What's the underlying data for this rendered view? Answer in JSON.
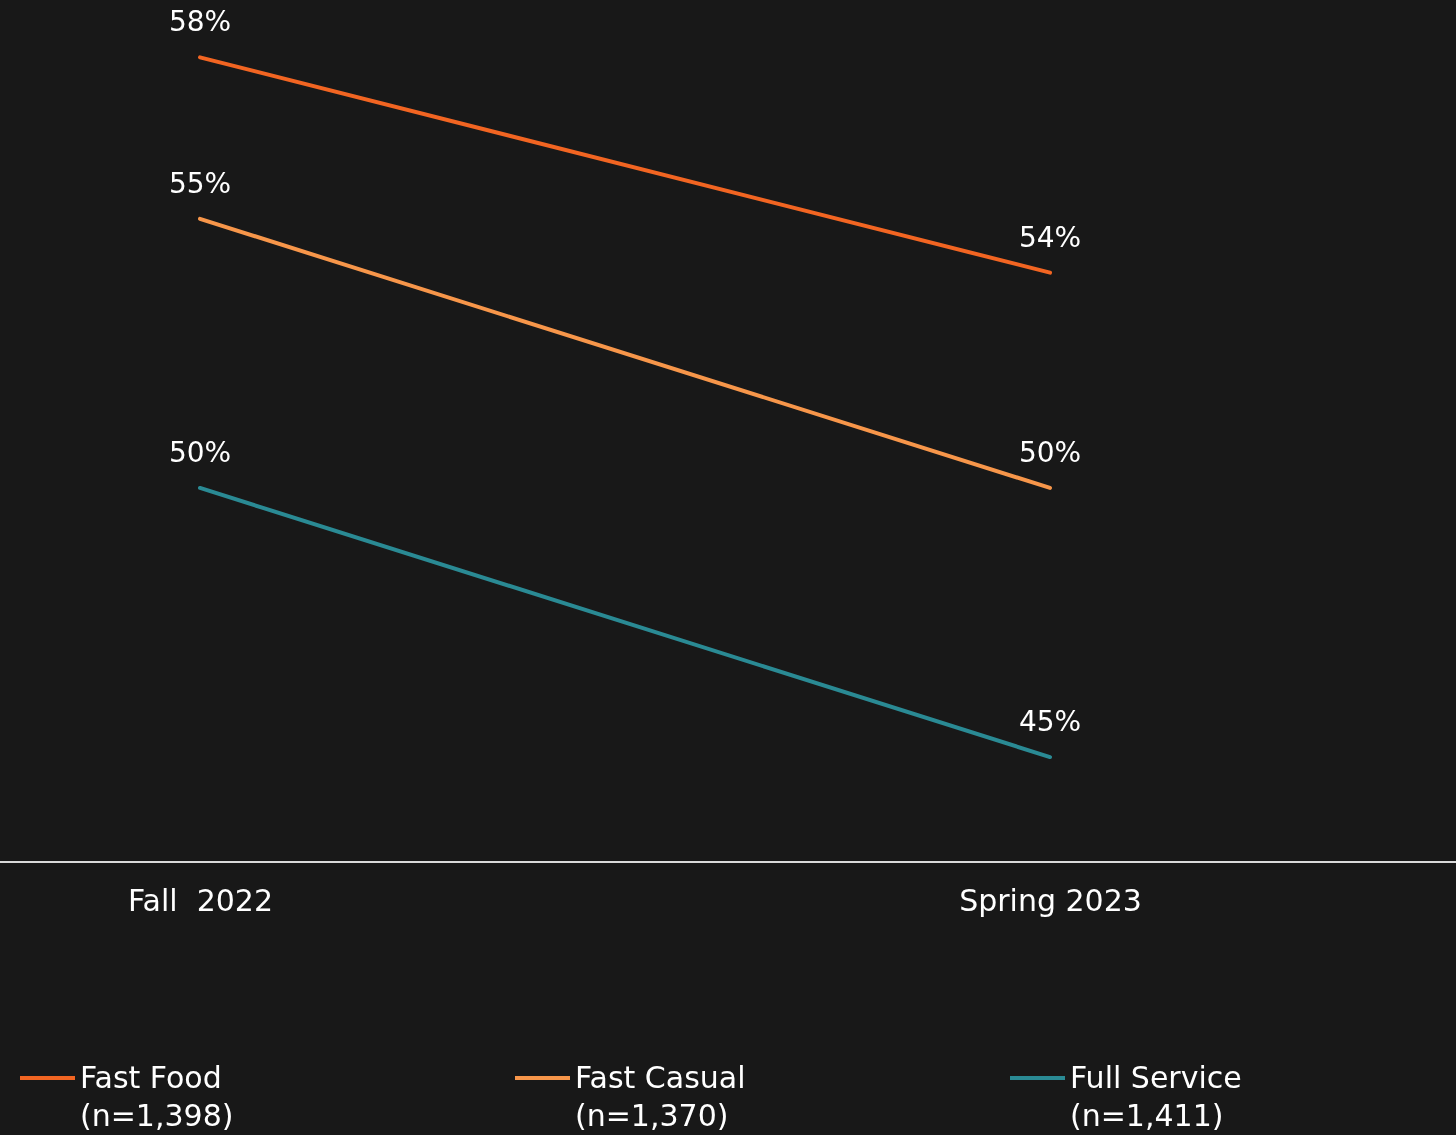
{
  "chart_data": {
    "type": "line",
    "categories": [
      "Fall  2022",
      "Spring 2023"
    ],
    "series": [
      {
        "name": "Fast Food\n(n=1,398)",
        "color": "#f26522",
        "values": [
          58,
          54
        ],
        "value_labels": [
          "58%",
          "54%"
        ]
      },
      {
        "name": "Fast Casual\n(n=1,370)",
        "color": "#f7964a",
        "values": [
          55,
          50
        ],
        "value_labels": [
          "55%",
          "50%"
        ]
      },
      {
        "name": "Full Service\n(n=1,411)",
        "color": "#2a8a94",
        "values": [
          50,
          45
        ],
        "value_labels": [
          "50%",
          "45%"
        ]
      }
    ],
    "legend": "bottom",
    "marker": "none",
    "line_style": "solid"
  }
}
